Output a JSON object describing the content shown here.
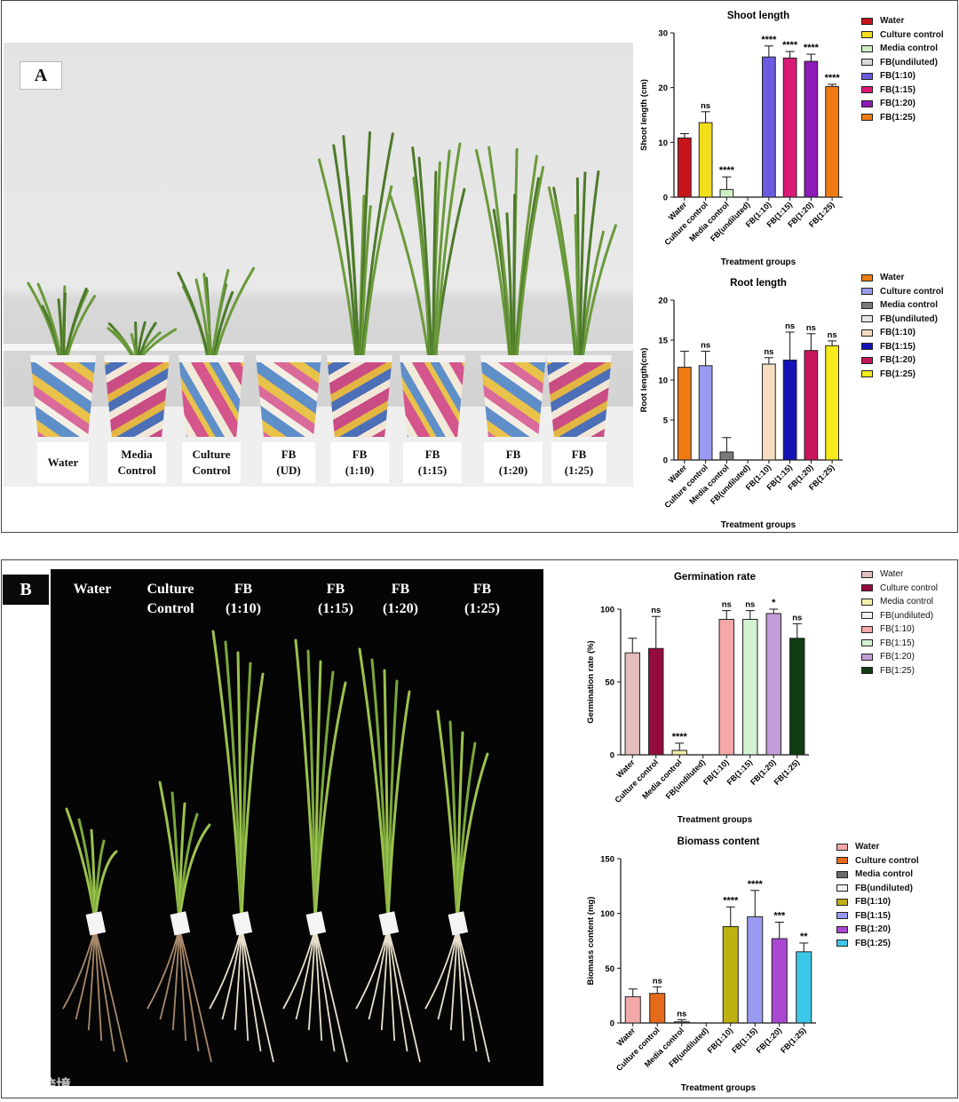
{
  "panelA": {
    "letter": "A",
    "pot_labels": [
      [
        "Water"
      ],
      [
        "Media",
        "Control"
      ],
      [
        "Culture",
        "Control"
      ],
      [
        "FB",
        "(UD)"
      ],
      [
        "FB",
        "(1:10)"
      ],
      [
        "FB",
        "(1:15)"
      ],
      [
        "FB",
        "(1:20)"
      ],
      [
        "FB",
        "(1:25)"
      ]
    ],
    "pot_plants": [
      0.25,
      0.12,
      0.3,
      0.0,
      0.75,
      0.72,
      0.7,
      0.62
    ]
  },
  "panelB": {
    "letter": "B",
    "seedling_labels": [
      [
        "Water"
      ],
      [
        "Culture",
        "Control"
      ],
      [
        "FB",
        "(1:10)"
      ],
      [
        "FB",
        "(1:15)"
      ],
      [
        "FB",
        "(1:20)"
      ],
      [
        "FB",
        "(1:25)"
      ]
    ],
    "watermark": "大数跨境"
  },
  "chart_data": [
    {
      "id": "shoot",
      "type": "bar",
      "title": "Shoot length",
      "xlabel": "Treatment groups",
      "ylabel": "Shoot length (cm)",
      "ylim": [
        0,
        30
      ],
      "yticks": [
        "0",
        "10",
        "20",
        "30"
      ],
      "categories": [
        "Water",
        "Culture control",
        "Media control",
        "FB(undiluted)",
        "FB(1:10)",
        "FB(1:15)",
        "FB(1:20)",
        "FB(1:25)"
      ],
      "values": [
        10.8,
        13.6,
        1.4,
        0,
        25.6,
        25.4,
        24.8,
        20.2
      ],
      "errors": [
        0.8,
        2.0,
        2.3,
        0,
        2.0,
        1.2,
        1.3,
        0.4
      ],
      "significance": [
        "",
        "ns",
        "****",
        "",
        "****",
        "****",
        "****",
        "****"
      ],
      "colors": [
        "#c8151c",
        "#f2de1a",
        "#ccefc4",
        "#d9d9d9",
        "#6a5be0",
        "#d81a75",
        "#8e1ab8",
        "#ef7b12"
      ],
      "legend": [
        "Water",
        "Culture control",
        "Media control",
        "FB(undiluted)",
        "FB(1:10)",
        "FB(1:15)",
        "FB(1:20)",
        "FB(1:25)"
      ],
      "legend_bold": true
    },
    {
      "id": "root",
      "type": "bar",
      "title": "Root length",
      "xlabel": "Treatment groups",
      "ylabel": "Root length(cm)",
      "ylim": [
        0,
        20
      ],
      "yticks": [
        "0",
        "5",
        "10",
        "15",
        "20"
      ],
      "categories": [
        "Water",
        "Culture control",
        "Media control",
        "FB(undiluted)",
        "FB(1:10)",
        "FB(1:15)",
        "FB(1:20)",
        "FB(1:25)"
      ],
      "values": [
        11.6,
        11.8,
        1.0,
        0,
        12.0,
        12.5,
        13.7,
        14.3
      ],
      "errors": [
        2.0,
        1.8,
        1.8,
        0,
        0.8,
        3.5,
        2.1,
        0.6
      ],
      "significance": [
        "",
        "ns",
        "",
        "",
        "ns",
        "ns",
        "ns",
        "ns"
      ],
      "colors": [
        "#ef7b12",
        "#9a9af2",
        "#7a7a7a",
        "#e6e6e6",
        "#f6dcc0",
        "#1414b4",
        "#c8155a",
        "#f6ea1a"
      ],
      "legend": [
        "Water",
        "Culture control",
        "Media control",
        "FB(undiluted)",
        "FB(1:10)",
        "FB(1:15)",
        "FB(1:20)",
        "FB(1:25)"
      ],
      "legend_bold": true
    },
    {
      "id": "germ",
      "type": "bar",
      "title": "Germination rate",
      "xlabel": "Treatment groups",
      "ylabel": "Germination rate (%)",
      "ylim": [
        0,
        100
      ],
      "yticks": [
        "0",
        "50",
        "100"
      ],
      "categories": [
        "Water",
        "Culture control",
        "Media control",
        "FB(undiluted)",
        "FB(1:10)",
        "FB(1:15)",
        "FB(1:20)",
        "FB(1:25)"
      ],
      "values": [
        70,
        73,
        3,
        0,
        93,
        93,
        97,
        80
      ],
      "errors": [
        10,
        22,
        5,
        0,
        6,
        6,
        3,
        10
      ],
      "significance": [
        "",
        "ns",
        "****",
        "",
        "ns",
        "ns",
        "*",
        "ns"
      ],
      "colors": [
        "#e3bcbc",
        "#960b3d",
        "#f4efa6",
        "#f2f2f2",
        "#f6a8a8",
        "#d3f2cf",
        "#c39bd8",
        "#103d12"
      ],
      "legend": [
        "Water",
        "Culture control",
        "Media control",
        "FB(undiluted)",
        "FB(1:10)",
        "FB(1:15)",
        "FB(1:20)",
        "FB(1:25)"
      ],
      "legend_bold": false
    },
    {
      "id": "biomass",
      "type": "bar",
      "title": "Biomass content",
      "xlabel": "Treatment groups",
      "ylabel": "Biomass content (mg)",
      "ylim": [
        0,
        150
      ],
      "yticks": [
        "0",
        "50",
        "100",
        "150"
      ],
      "categories": [
        "Water",
        "Culture control",
        "Media control",
        "FB(undiluted)",
        "FB(1:10)",
        "FB(1:15)",
        "FB(1:20)",
        "FB(1:25)"
      ],
      "values": [
        24,
        27,
        1,
        0,
        88,
        97,
        77,
        65
      ],
      "errors": [
        7,
        6,
        2,
        0,
        18,
        24,
        15,
        8
      ],
      "significance": [
        "",
        "ns",
        "ns",
        "",
        "****",
        "****",
        "***",
        "**"
      ],
      "colors": [
        "#f2a8a8",
        "#e56a1a",
        "#6a6a6a",
        "#efefef",
        "#bfb012",
        "#9a9af2",
        "#aa48d2",
        "#3cc8e8"
      ],
      "legend": [
        "Water",
        "Culture control",
        "Media control",
        "FB(undiluted)",
        "FB(1:10)",
        "FB(1:15)",
        "FB(1:20)",
        "FB(1:25)"
      ],
      "legend_bold": true
    }
  ]
}
